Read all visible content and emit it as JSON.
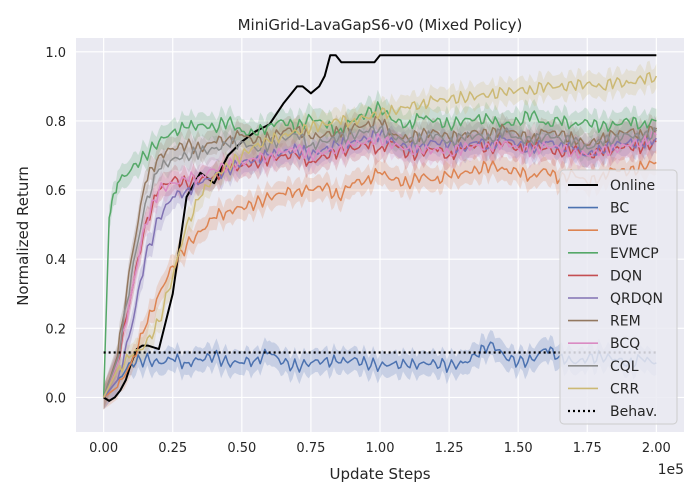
{
  "chart_data": {
    "type": "line",
    "title": "MiniGrid-LavaGapS6-v0 (Mixed Policy)",
    "xlabel": "Update Steps",
    "ylabel": "Normalized Return",
    "x_multiplier_label": "1e5",
    "xlim": [
      -0.1,
      2.1
    ],
    "ylim": [
      -0.1,
      1.04
    ],
    "x_ticks": [
      0.0,
      0.25,
      0.5,
      0.75,
      1.0,
      1.25,
      1.5,
      1.75,
      2.0
    ],
    "x_tick_labels": [
      "0.00",
      "0.25",
      "0.50",
      "0.75",
      "1.00",
      "1.25",
      "1.50",
      "1.75",
      "2.00"
    ],
    "y_ticks": [
      0.0,
      0.2,
      0.4,
      0.6,
      0.8,
      1.0
    ],
    "y_tick_labels": [
      "0.0",
      "0.2",
      "0.4",
      "0.6",
      "0.8",
      "1.0"
    ],
    "grid": true,
    "legend_position": "right",
    "series": [
      {
        "name": "Online",
        "color": "#000000",
        "style": "solid",
        "band": false,
        "x": [
          0.0,
          0.02,
          0.04,
          0.06,
          0.08,
          0.1,
          0.12,
          0.14,
          0.16,
          0.2,
          0.25,
          0.3,
          0.35,
          0.4,
          0.45,
          0.5,
          0.55,
          0.6,
          0.65,
          0.7,
          0.72,
          0.75,
          0.78,
          0.8,
          0.82,
          0.84,
          0.86,
          0.9,
          0.95,
          0.98,
          1.0,
          1.5,
          2.0
        ],
        "y": [
          0.0,
          -0.01,
          0.0,
          0.02,
          0.05,
          0.1,
          0.14,
          0.15,
          0.15,
          0.14,
          0.3,
          0.58,
          0.65,
          0.62,
          0.7,
          0.74,
          0.77,
          0.79,
          0.85,
          0.9,
          0.9,
          0.88,
          0.9,
          0.93,
          0.99,
          0.99,
          0.97,
          0.97,
          0.97,
          0.97,
          0.99,
          0.99,
          0.99
        ]
      },
      {
        "name": "BC",
        "color": "#4c72b0",
        "style": "solid",
        "band": true,
        "x": [
          0.0,
          0.05,
          0.1,
          0.15,
          0.2,
          0.25,
          0.3,
          0.35,
          0.4,
          0.45,
          0.5,
          0.55,
          0.6,
          0.65,
          0.7,
          0.75,
          0.8,
          0.85,
          0.9,
          0.95,
          1.0,
          1.05,
          1.1,
          1.15,
          1.2,
          1.25,
          1.3,
          1.35,
          1.4,
          1.45,
          1.5,
          1.55,
          1.6,
          1.65,
          1.7,
          1.75,
          1.8,
          1.85,
          1.9,
          1.95,
          2.0
        ],
        "y": [
          0.0,
          0.05,
          0.1,
          0.11,
          0.1,
          0.11,
          0.1,
          0.11,
          0.12,
          0.1,
          0.1,
          0.11,
          0.13,
          0.1,
          0.09,
          0.1,
          0.11,
          0.1,
          0.11,
          0.1,
          0.09,
          0.1,
          0.09,
          0.1,
          0.1,
          0.09,
          0.1,
          0.12,
          0.16,
          0.12,
          0.1,
          0.11,
          0.14,
          0.12,
          0.1,
          0.11,
          0.12,
          0.11,
          0.1,
          0.11,
          0.1
        ]
      },
      {
        "name": "BVE",
        "color": "#dd8452",
        "style": "solid",
        "band": true,
        "x": [
          0.0,
          0.05,
          0.1,
          0.15,
          0.2,
          0.25,
          0.3,
          0.35,
          0.4,
          0.45,
          0.5,
          0.55,
          0.6,
          0.65,
          0.7,
          0.75,
          0.8,
          0.85,
          0.9,
          0.95,
          1.0,
          1.05,
          1.1,
          1.15,
          1.2,
          1.25,
          1.3,
          1.35,
          1.4,
          1.45,
          1.5,
          1.55,
          1.6,
          1.65,
          1.7,
          1.75,
          1.8,
          1.85,
          1.9,
          1.95,
          2.0
        ],
        "y": [
          0.0,
          0.03,
          0.1,
          0.2,
          0.3,
          0.38,
          0.44,
          0.48,
          0.52,
          0.54,
          0.55,
          0.56,
          0.58,
          0.59,
          0.6,
          0.6,
          0.61,
          0.58,
          0.62,
          0.63,
          0.65,
          0.63,
          0.62,
          0.64,
          0.63,
          0.64,
          0.65,
          0.66,
          0.67,
          0.66,
          0.65,
          0.64,
          0.66,
          0.63,
          0.65,
          0.62,
          0.64,
          0.66,
          0.65,
          0.67,
          0.68
        ]
      },
      {
        "name": "EVMCP",
        "color": "#55a868",
        "style": "solid",
        "band": true,
        "x": [
          0.0,
          0.02,
          0.05,
          0.1,
          0.15,
          0.2,
          0.25,
          0.3,
          0.35,
          0.4,
          0.45,
          0.5,
          0.55,
          0.6,
          0.65,
          0.7,
          0.75,
          0.8,
          0.85,
          0.9,
          0.95,
          1.0,
          1.05,
          1.1,
          1.15,
          1.2,
          1.25,
          1.3,
          1.35,
          1.4,
          1.45,
          1.5,
          1.55,
          1.6,
          1.65,
          1.7,
          1.75,
          1.8,
          1.85,
          1.9,
          1.95,
          2.0
        ],
        "y": [
          0.0,
          0.52,
          0.62,
          0.66,
          0.7,
          0.74,
          0.77,
          0.78,
          0.79,
          0.78,
          0.8,
          0.77,
          0.76,
          0.79,
          0.8,
          0.78,
          0.81,
          0.79,
          0.77,
          0.8,
          0.82,
          0.84,
          0.8,
          0.79,
          0.81,
          0.8,
          0.79,
          0.8,
          0.81,
          0.8,
          0.79,
          0.8,
          0.82,
          0.79,
          0.8,
          0.79,
          0.8,
          0.78,
          0.79,
          0.8,
          0.79,
          0.8
        ]
      },
      {
        "name": "DQN",
        "color": "#c44e52",
        "style": "solid",
        "band": true,
        "x": [
          0.0,
          0.05,
          0.1,
          0.15,
          0.2,
          0.25,
          0.3,
          0.35,
          0.4,
          0.45,
          0.5,
          0.55,
          0.6,
          0.65,
          0.7,
          0.75,
          0.8,
          0.85,
          0.9,
          0.95,
          1.0,
          1.05,
          1.1,
          1.15,
          1.2,
          1.25,
          1.3,
          1.35,
          1.4,
          1.45,
          1.5,
          1.55,
          1.6,
          1.65,
          1.7,
          1.75,
          1.8,
          1.85,
          1.9,
          1.95,
          2.0
        ],
        "y": [
          0.0,
          0.1,
          0.3,
          0.5,
          0.6,
          0.63,
          0.62,
          0.63,
          0.64,
          0.66,
          0.67,
          0.68,
          0.69,
          0.7,
          0.7,
          0.68,
          0.7,
          0.71,
          0.72,
          0.73,
          0.72,
          0.74,
          0.7,
          0.71,
          0.72,
          0.7,
          0.72,
          0.73,
          0.72,
          0.74,
          0.72,
          0.73,
          0.72,
          0.71,
          0.72,
          0.7,
          0.71,
          0.72,
          0.73,
          0.72,
          0.74
        ]
      },
      {
        "name": "QRDQN",
        "color": "#8172b3",
        "style": "solid",
        "band": true,
        "x": [
          0.0,
          0.05,
          0.1,
          0.15,
          0.2,
          0.25,
          0.3,
          0.35,
          0.4,
          0.45,
          0.5,
          0.55,
          0.6,
          0.65,
          0.7,
          0.75,
          0.8,
          0.85,
          0.9,
          0.95,
          1.0,
          1.05,
          1.1,
          1.15,
          1.2,
          1.25,
          1.3,
          1.35,
          1.4,
          1.45,
          1.5,
          1.55,
          1.6,
          1.65,
          1.7,
          1.75,
          1.8,
          1.85,
          1.9,
          1.95,
          2.0
        ],
        "y": [
          0.0,
          0.05,
          0.2,
          0.4,
          0.52,
          0.58,
          0.6,
          0.62,
          0.64,
          0.66,
          0.68,
          0.69,
          0.7,
          0.71,
          0.72,
          0.7,
          0.72,
          0.73,
          0.74,
          0.75,
          0.76,
          0.74,
          0.72,
          0.73,
          0.74,
          0.73,
          0.72,
          0.74,
          0.73,
          0.75,
          0.73,
          0.72,
          0.74,
          0.73,
          0.72,
          0.7,
          0.72,
          0.73,
          0.74,
          0.73,
          0.75
        ]
      },
      {
        "name": "REM",
        "color": "#937860",
        "style": "solid",
        "band": true,
        "x": [
          0.0,
          0.05,
          0.1,
          0.15,
          0.2,
          0.25,
          0.3,
          0.35,
          0.4,
          0.45,
          0.5,
          0.55,
          0.6,
          0.65,
          0.7,
          0.75,
          0.8,
          0.85,
          0.9,
          0.95,
          1.0,
          1.05,
          1.1,
          1.15,
          1.2,
          1.25,
          1.3,
          1.35,
          1.4,
          1.45,
          1.5,
          1.55,
          1.6,
          1.65,
          1.7,
          1.75,
          1.8,
          1.85,
          1.9,
          1.95,
          2.0
        ],
        "y": [
          0.0,
          0.12,
          0.4,
          0.62,
          0.7,
          0.72,
          0.73,
          0.72,
          0.74,
          0.75,
          0.76,
          0.74,
          0.75,
          0.77,
          0.78,
          0.75,
          0.76,
          0.77,
          0.78,
          0.79,
          0.8,
          0.76,
          0.75,
          0.76,
          0.77,
          0.75,
          0.76,
          0.77,
          0.76,
          0.78,
          0.76,
          0.75,
          0.77,
          0.76,
          0.75,
          0.73,
          0.75,
          0.76,
          0.77,
          0.76,
          0.78
        ]
      },
      {
        "name": "BCQ",
        "color": "#da8bc3",
        "style": "solid",
        "band": true,
        "x": [
          0.0,
          0.05,
          0.1,
          0.15,
          0.2,
          0.25,
          0.3,
          0.35,
          0.4,
          0.45,
          0.5,
          0.55,
          0.6,
          0.65,
          0.7,
          0.75,
          0.8,
          0.85,
          0.9,
          0.95,
          1.0,
          1.05,
          1.1,
          1.15,
          1.2,
          1.25,
          1.3,
          1.35,
          1.4,
          1.45,
          1.5,
          1.55,
          1.6,
          1.65,
          1.7,
          1.75,
          1.8,
          1.85,
          1.9,
          1.95,
          2.0
        ],
        "y": [
          0.0,
          0.1,
          0.3,
          0.5,
          0.6,
          0.62,
          0.63,
          0.64,
          0.66,
          0.67,
          0.68,
          0.69,
          0.7,
          0.71,
          0.72,
          0.7,
          0.71,
          0.72,
          0.73,
          0.74,
          0.75,
          0.73,
          0.72,
          0.71,
          0.72,
          0.71,
          0.72,
          0.73,
          0.72,
          0.74,
          0.72,
          0.71,
          0.73,
          0.72,
          0.71,
          0.7,
          0.71,
          0.72,
          0.73,
          0.74,
          0.76
        ]
      },
      {
        "name": "CQL",
        "color": "#8c8c8c",
        "style": "solid",
        "band": true,
        "x": [
          0.0,
          0.05,
          0.1,
          0.15,
          0.2,
          0.25,
          0.3,
          0.35,
          0.4,
          0.45,
          0.5,
          0.55,
          0.6,
          0.65,
          0.7,
          0.75,
          0.8,
          0.85,
          0.9,
          0.95,
          1.0,
          1.05,
          1.1,
          1.15,
          1.2,
          1.25,
          1.3,
          1.35,
          1.4,
          1.45,
          1.5,
          1.55,
          1.6,
          1.65,
          1.7,
          1.75,
          1.8,
          1.85,
          1.9,
          1.95,
          2.0
        ],
        "y": [
          0.0,
          0.11,
          0.35,
          0.56,
          0.66,
          0.69,
          0.7,
          0.71,
          0.72,
          0.73,
          0.74,
          0.72,
          0.73,
          0.75,
          0.76,
          0.73,
          0.74,
          0.75,
          0.76,
          0.77,
          0.78,
          0.75,
          0.74,
          0.75,
          0.76,
          0.74,
          0.75,
          0.76,
          0.75,
          0.77,
          0.75,
          0.74,
          0.76,
          0.75,
          0.74,
          0.72,
          0.74,
          0.75,
          0.76,
          0.75,
          0.77
        ]
      },
      {
        "name": "CRR",
        "color": "#ccb974",
        "style": "solid",
        "band": true,
        "x": [
          0.0,
          0.05,
          0.1,
          0.15,
          0.2,
          0.25,
          0.3,
          0.35,
          0.4,
          0.45,
          0.5,
          0.55,
          0.6,
          0.65,
          0.7,
          0.75,
          0.8,
          0.85,
          0.9,
          0.95,
          1.0,
          1.05,
          1.1,
          1.15,
          1.2,
          1.25,
          1.3,
          1.35,
          1.4,
          1.45,
          1.5,
          1.55,
          1.6,
          1.65,
          1.7,
          1.75,
          1.8,
          1.85,
          1.9,
          1.95,
          2.0
        ],
        "y": [
          0.0,
          0.08,
          0.12,
          0.15,
          0.22,
          0.35,
          0.5,
          0.58,
          0.64,
          0.67,
          0.7,
          0.73,
          0.74,
          0.76,
          0.77,
          0.78,
          0.79,
          0.8,
          0.8,
          0.81,
          0.82,
          0.83,
          0.84,
          0.85,
          0.86,
          0.86,
          0.87,
          0.87,
          0.88,
          0.88,
          0.89,
          0.89,
          0.9,
          0.9,
          0.9,
          0.91,
          0.9,
          0.91,
          0.91,
          0.92,
          0.93
        ]
      },
      {
        "name": "Behav.",
        "color": "#000000",
        "style": "dotted",
        "band": false,
        "x": [
          0.0,
          2.0
        ],
        "y": [
          0.13,
          0.13
        ]
      }
    ]
  }
}
